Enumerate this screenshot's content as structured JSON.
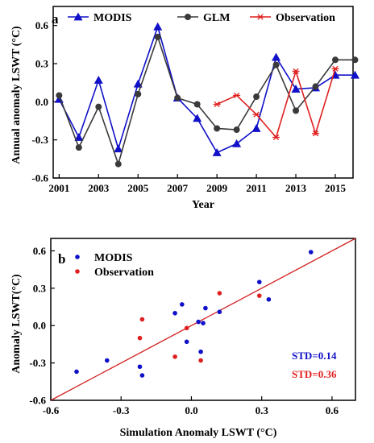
{
  "colors": {
    "modis": "#1010c8",
    "glm": "#3a3a3a",
    "observation": "#e02020",
    "fit_line": "#d42020",
    "axis": "#000000"
  },
  "chart_data": [
    {
      "type": "line",
      "panel_label": "a",
      "xlabel": "Year",
      "ylabel": "Annual anomaly LSWT (°C)",
      "xlim": [
        2000.7,
        2015.9
      ],
      "ylim": [
        -0.6,
        0.75
      ],
      "x_ticks": [
        2001,
        2003,
        2005,
        2007,
        2009,
        2011,
        2013,
        2015
      ],
      "y_ticks": [
        -0.6,
        -0.3,
        0.0,
        0.3,
        0.6
      ],
      "x_tick_labels": [
        "2001",
        "2003",
        "2005",
        "2007",
        "2009",
        "2011",
        "2013",
        "2015"
      ],
      "y_tick_labels": [
        "-0.6",
        "-0.3",
        "0.0",
        "0.3",
        "0.6"
      ],
      "legend_position": "top",
      "series": [
        {
          "name": "MODIS",
          "color_key": "modis",
          "marker": "triangle",
          "x": [
            2001,
            2002,
            2003,
            2004,
            2005,
            2006,
            2007,
            2008,
            2009,
            2010,
            2011,
            2012,
            2013,
            2014,
            2015,
            2016
          ],
          "y": [
            0.02,
            -0.28,
            0.17,
            -0.37,
            0.14,
            0.59,
            0.03,
            -0.13,
            -0.4,
            -0.33,
            -0.21,
            0.35,
            0.1,
            0.11,
            0.21,
            0.21
          ]
        },
        {
          "name": "GLM",
          "color_key": "glm",
          "marker": "circle",
          "x": [
            2001,
            2002,
            2003,
            2004,
            2005,
            2006,
            2007,
            2008,
            2009,
            2010,
            2011,
            2012,
            2013,
            2014,
            2015,
            2016
          ],
          "y": [
            0.05,
            -0.36,
            -0.04,
            -0.49,
            0.06,
            0.51,
            0.03,
            -0.02,
            -0.21,
            -0.22,
            0.04,
            0.29,
            -0.07,
            0.12,
            0.33,
            0.33
          ]
        },
        {
          "name": "Observation",
          "color_key": "observation",
          "marker": "asterisk",
          "x": [
            2009,
            2010,
            2011,
            2012,
            2013,
            2014,
            2015
          ],
          "y": [
            -0.02,
            0.05,
            -0.1,
            -0.28,
            0.24,
            -0.25,
            0.26
          ]
        }
      ]
    },
    {
      "type": "scatter",
      "panel_label": "b",
      "xlabel": "Simulation Anomaly LSWT (°C)",
      "ylabel": "Anomaly LSWT(°C)",
      "xlim": [
        -0.6,
        0.7
      ],
      "ylim": [
        -0.6,
        0.7
      ],
      "x_ticks": [
        -0.6,
        -0.3,
        0.0,
        0.3,
        0.6
      ],
      "y_ticks": [
        -0.6,
        -0.3,
        0.0,
        0.3,
        0.6
      ],
      "x_tick_labels": [
        "-0.6",
        "-0.3",
        "0.0",
        "0.3",
        "0.6"
      ],
      "y_tick_labels": [
        "-0.6",
        "-0.3",
        "0.0",
        "0.3",
        "0.6"
      ],
      "legend_position": "top-left",
      "fit_line": {
        "x": [
          -0.6,
          0.7
        ],
        "y": [
          -0.6,
          0.7
        ]
      },
      "annotations": [
        {
          "text": "STD=0.14",
          "color_key": "modis"
        },
        {
          "text": "STD=0.36",
          "color_key": "observation"
        }
      ],
      "series": [
        {
          "name": "MODIS",
          "color_key": "modis",
          "x": [
            0.05,
            -0.36,
            -0.04,
            -0.49,
            0.06,
            0.51,
            0.03,
            -0.02,
            -0.21,
            -0.22,
            0.04,
            0.29,
            -0.07,
            0.12,
            0.33
          ],
          "y": [
            0.02,
            -0.28,
            0.17,
            -0.37,
            0.14,
            0.59,
            0.03,
            -0.13,
            -0.4,
            -0.33,
            -0.21,
            0.35,
            0.1,
            0.11,
            0.21
          ]
        },
        {
          "name": "Observation",
          "color_key": "observation",
          "x": [
            -0.02,
            -0.21,
            0.04,
            -0.07,
            0.29,
            -0.22,
            0.12
          ],
          "y": [
            -0.02,
            0.05,
            -0.28,
            -0.25,
            0.24,
            -0.1,
            0.26
          ]
        }
      ]
    }
  ]
}
